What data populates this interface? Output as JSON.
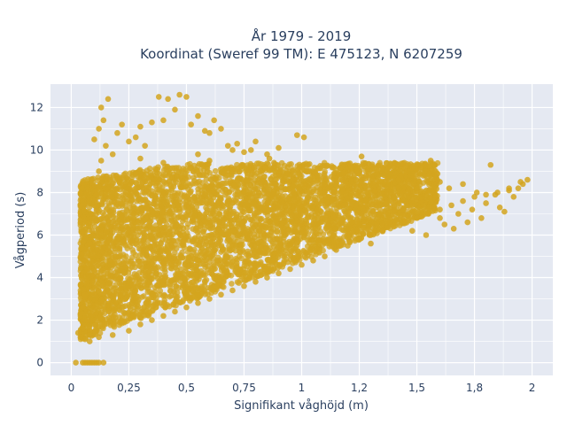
{
  "chart_data": {
    "type": "scatter",
    "title": [
      "År 1979 - 2019",
      "Koordinat (Sweref 99 TM): E 475123, N 6207259"
    ],
    "xlabel": "Signifikant våghöjd (m)",
    "ylabel": "Vågperiod (s)",
    "xlim": [
      -0.09,
      2.09
    ],
    "ylim": [
      -0.6,
      13.1
    ],
    "xticks": [
      0,
      0.25,
      0.5,
      0.75,
      1,
      1.25,
      1.5,
      1.75,
      2
    ],
    "xtick_labels": [
      "0",
      "0,25",
      "0,5",
      "0,75",
      "1",
      "1,2",
      "1,5",
      "1,8",
      "2"
    ],
    "yticks": [
      0,
      2,
      4,
      6,
      8,
      10,
      12
    ],
    "ytick_labels": [
      "0",
      "2",
      "4",
      "6",
      "8",
      "10",
      "12"
    ],
    "grid": true,
    "series_color": "#d4a51f",
    "background_color": "#e5e9f2",
    "points": [
      [
        0.03,
        1.4
      ],
      [
        0.04,
        1.2
      ],
      [
        0.05,
        1.6
      ],
      [
        0.06,
        1.1
      ],
      [
        0.07,
        2.0
      ],
      [
        0.08,
        1.3
      ],
      [
        0.05,
        2.6
      ],
      [
        0.06,
        3.2
      ],
      [
        0.04,
        2.3
      ],
      [
        0.07,
        4.4
      ],
      [
        0.06,
        4.8
      ],
      [
        0.08,
        5.6
      ],
      [
        0.09,
        6.2
      ],
      [
        0.1,
        6.8
      ],
      [
        0.1,
        7.4
      ],
      [
        0.11,
        7.9
      ],
      [
        0.12,
        8.3
      ],
      [
        0.12,
        9.0
      ],
      [
        0.13,
        9.5
      ],
      [
        0.1,
        10.5
      ],
      [
        0.14,
        11.4
      ],
      [
        0.13,
        12.0
      ],
      [
        0.16,
        12.4
      ],
      [
        0.12,
        11.0
      ],
      [
        0.15,
        10.2
      ],
      [
        0.18,
        9.8
      ],
      [
        0.2,
        10.8
      ],
      [
        0.22,
        11.2
      ],
      [
        0.25,
        10.4
      ],
      [
        0.28,
        10.6
      ],
      [
        0.3,
        11.1
      ],
      [
        0.32,
        10.2
      ],
      [
        0.35,
        11.3
      ],
      [
        0.38,
        12.5
      ],
      [
        0.4,
        11.4
      ],
      [
        0.42,
        12.4
      ],
      [
        0.45,
        11.9
      ],
      [
        0.47,
        12.6
      ],
      [
        0.5,
        12.5
      ],
      [
        0.52,
        11.2
      ],
      [
        0.55,
        11.6
      ],
      [
        0.58,
        10.9
      ],
      [
        0.6,
        10.8
      ],
      [
        0.62,
        11.4
      ],
      [
        0.65,
        11.0
      ],
      [
        0.68,
        10.2
      ],
      [
        0.7,
        10.0
      ],
      [
        0.72,
        10.3
      ],
      [
        0.75,
        9.9
      ],
      [
        0.78,
        10.0
      ],
      [
        0.8,
        10.4
      ],
      [
        0.85,
        9.8
      ],
      [
        0.9,
        10.1
      ],
      [
        0.98,
        10.7
      ],
      [
        1.01,
        10.6
      ],
      [
        0.86,
        9.6
      ],
      [
        0.6,
        9.5
      ],
      [
        0.55,
        9.8
      ],
      [
        0.4,
        9.4
      ],
      [
        0.3,
        9.6
      ],
      [
        0.05,
        0
      ],
      [
        0.06,
        0
      ],
      [
        0.07,
        0
      ],
      [
        0.08,
        0
      ],
      [
        0.09,
        0
      ],
      [
        0.1,
        0
      ],
      [
        0.11,
        0
      ],
      [
        0.12,
        0
      ],
      [
        0.14,
        0
      ],
      [
        0.02,
        0
      ],
      [
        0.08,
        1.0
      ],
      [
        0.12,
        1.2
      ],
      [
        0.18,
        1.3
      ],
      [
        0.25,
        1.5
      ],
      [
        0.3,
        1.8
      ],
      [
        0.35,
        2.0
      ],
      [
        0.4,
        2.2
      ],
      [
        0.45,
        2.4
      ],
      [
        0.5,
        2.6
      ],
      [
        0.55,
        2.8
      ],
      [
        0.6,
        3.0
      ],
      [
        0.65,
        3.2
      ],
      [
        0.7,
        3.4
      ],
      [
        0.75,
        3.6
      ],
      [
        0.8,
        3.8
      ],
      [
        0.85,
        4.0
      ],
      [
        0.9,
        4.2
      ],
      [
        0.95,
        4.4
      ],
      [
        1.0,
        4.6
      ],
      [
        1.05,
        4.8
      ],
      [
        1.1,
        5.0
      ],
      [
        1.15,
        5.3
      ],
      [
        1.2,
        5.5
      ],
      [
        1.25,
        5.8
      ],
      [
        1.3,
        6.0
      ],
      [
        1.35,
        6.2
      ],
      [
        1.4,
        6.4
      ],
      [
        1.45,
        6.6
      ],
      [
        1.5,
        6.8
      ],
      [
        1.55,
        7.0
      ],
      [
        1.6,
        7.2
      ],
      [
        1.65,
        7.4
      ],
      [
        1.7,
        7.6
      ],
      [
        1.75,
        7.8
      ],
      [
        1.8,
        7.9
      ],
      [
        1.85,
        8.0
      ],
      [
        1.9,
        8.1
      ],
      [
        1.95,
        8.5
      ],
      [
        1.98,
        8.6
      ],
      [
        1.96,
        8.4
      ],
      [
        1.82,
        9.3
      ],
      [
        1.86,
        7.3
      ],
      [
        1.88,
        7.1
      ],
      [
        1.9,
        8.2
      ],
      [
        1.78,
        6.8
      ],
      [
        1.72,
        6.6
      ],
      [
        1.68,
        7.0
      ],
      [
        1.6,
        6.8
      ],
      [
        1.56,
        9.5
      ],
      [
        1.26,
        9.7
      ],
      [
        1.28,
        8.8
      ],
      [
        1.32,
        8.1
      ],
      [
        1.36,
        8.5
      ],
      [
        1.42,
        8.6
      ],
      [
        1.46,
        8.0
      ],
      [
        1.5,
        8.2
      ],
      [
        1.52,
        7.6
      ],
      [
        1.6,
        8.5
      ],
      [
        1.64,
        8.2
      ],
      [
        1.76,
        8.0
      ],
      [
        1.8,
        7.5
      ],
      [
        1.84,
        7.9
      ],
      [
        1.92,
        7.8
      ],
      [
        1.94,
        8.2
      ],
      [
        1.7,
        8.4
      ],
      [
        1.74,
        7.2
      ],
      [
        1.66,
        6.3
      ],
      [
        1.62,
        6.5
      ],
      [
        1.58,
        7.8
      ],
      [
        1.54,
        6.0
      ],
      [
        1.48,
        6.2
      ],
      [
        1.44,
        7.2
      ],
      [
        1.4,
        7.8
      ],
      [
        1.38,
        6.6
      ],
      [
        1.34,
        7.4
      ],
      [
        1.3,
        5.6
      ],
      [
        1.22,
        6.6
      ],
      [
        1.18,
        7.4
      ],
      [
        1.14,
        8.0
      ],
      [
        1.1,
        8.4
      ],
      [
        1.06,
        8.9
      ],
      [
        1.02,
        9.0
      ],
      [
        0.98,
        8.6
      ],
      [
        0.94,
        9.2
      ],
      [
        0.9,
        8.8
      ],
      [
        0.88,
        9.4
      ],
      [
        0.82,
        9.0
      ],
      [
        0.78,
        8.7
      ],
      [
        0.74,
        9.3
      ],
      [
        0.7,
        9.1
      ]
    ]
  }
}
